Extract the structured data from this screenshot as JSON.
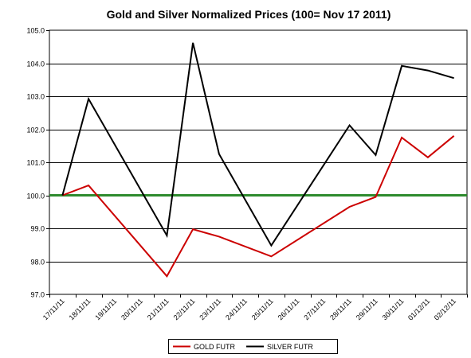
{
  "chart_data": {
    "type": "line",
    "title": "Gold and Silver Normalized Prices  (100= Nov 17 2011)",
    "categories": [
      "17/11/11",
      "18/11/11",
      "19/11/11",
      "20/11/11",
      "21/11/11",
      "22/11/11",
      "23/11/11",
      "24/11/11",
      "25/11/11",
      "26/11/11",
      "27/11/11",
      "28/11/11",
      "29/11/11",
      "30/11/11",
      "01/12/11",
      "02/12/11"
    ],
    "ylim": [
      97.0,
      105.0
    ],
    "yticks": [
      "97.0",
      "98.0",
      "99.0",
      "100.0",
      "101.0",
      "102.0",
      "103.0",
      "104.0",
      "105.0"
    ],
    "grid": true,
    "legend_position": "bottom",
    "baseline": {
      "value": 100.0,
      "color": "#2e8b2e"
    },
    "series": [
      {
        "name": "GOLD  FUTR",
        "color": "#cc0000",
        "points": [
          {
            "x": "17/11/11",
            "y": 100.0
          },
          {
            "x": "18/11/11",
            "y": 100.3
          },
          {
            "x": "21/11/11",
            "y": 97.55
          },
          {
            "x": "22/11/11",
            "y": 98.97
          },
          {
            "x": "23/11/11",
            "y": 98.75
          },
          {
            "x": "25/11/11",
            "y": 98.15
          },
          {
            "x": "28/11/11",
            "y": 99.65
          },
          {
            "x": "29/11/11",
            "y": 99.95
          },
          {
            "x": "30/11/11",
            "y": 101.75
          },
          {
            "x": "01/12/11",
            "y": 101.15
          },
          {
            "x": "02/12/11",
            "y": 101.8
          }
        ]
      },
      {
        "name": "SILVER  FUTR",
        "color": "#000000",
        "points": [
          {
            "x": "17/11/11",
            "y": 100.0
          },
          {
            "x": "18/11/11",
            "y": 102.92
          },
          {
            "x": "21/11/11",
            "y": 98.78
          },
          {
            "x": "22/11/11",
            "y": 104.62
          },
          {
            "x": "23/11/11",
            "y": 101.25
          },
          {
            "x": "25/11/11",
            "y": 98.48
          },
          {
            "x": "28/11/11",
            "y": 102.12
          },
          {
            "x": "29/11/11",
            "y": 101.22
          },
          {
            "x": "30/11/11",
            "y": 103.92
          },
          {
            "x": "01/12/11",
            "y": 103.78
          },
          {
            "x": "02/12/11",
            "y": 103.55
          }
        ]
      }
    ]
  }
}
